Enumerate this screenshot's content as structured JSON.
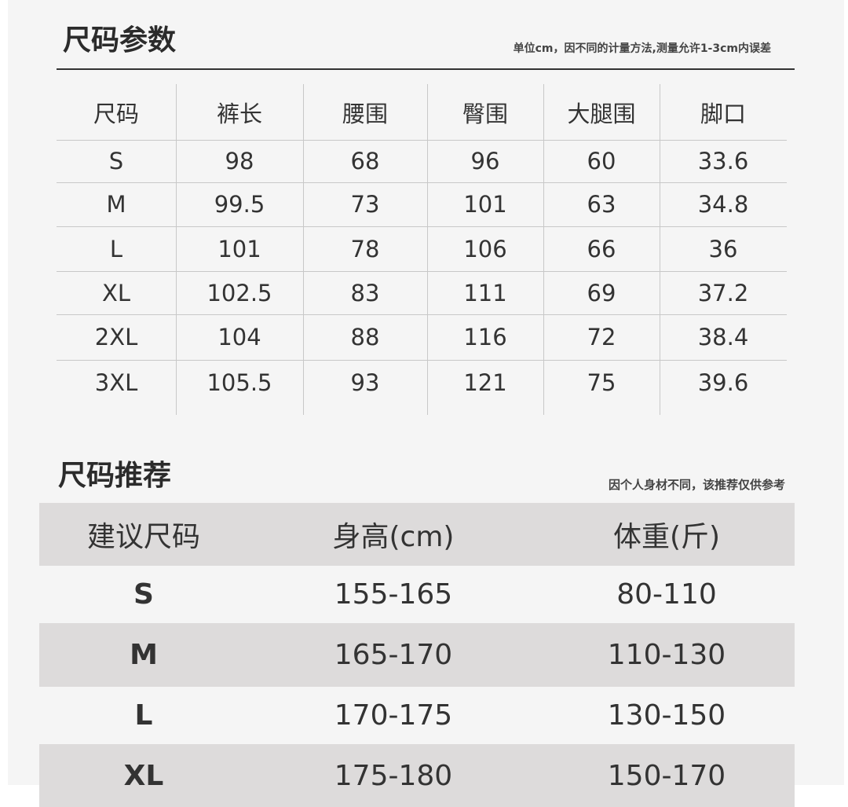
{
  "params": {
    "title": "尺码参数",
    "note": "单位cm，因不同的计量方法,测量允许1-3cm内误差",
    "headers": [
      "尺码",
      "裤长",
      "腰围",
      "臀围",
      "大腿围",
      "脚口"
    ],
    "rows": [
      [
        "S",
        "98",
        "68",
        "96",
        "60",
        "33.6"
      ],
      [
        "M",
        "99.5",
        "73",
        "101",
        "63",
        "34.8"
      ],
      [
        "L",
        "101",
        "78",
        "106",
        "66",
        "36"
      ],
      [
        "XL",
        "102.5",
        "83",
        "111",
        "69",
        "37.2"
      ],
      [
        "2XL",
        "104",
        "88",
        "116",
        "72",
        "38.4"
      ],
      [
        "3XL",
        "105.5",
        "93",
        "121",
        "75",
        "39.6"
      ]
    ]
  },
  "recommend": {
    "title": "尺码推荐",
    "note": "因个人身材不同，该推荐仅供参考",
    "headers": [
      "建议尺码",
      "身高(cm)",
      "体重(斤)"
    ],
    "rows": [
      [
        "S",
        "155-165",
        "80-110"
      ],
      [
        "M",
        "165-170",
        "110-130"
      ],
      [
        "L",
        "170-175",
        "130-150"
      ],
      [
        "XL",
        "175-180",
        "150-170"
      ]
    ]
  }
}
